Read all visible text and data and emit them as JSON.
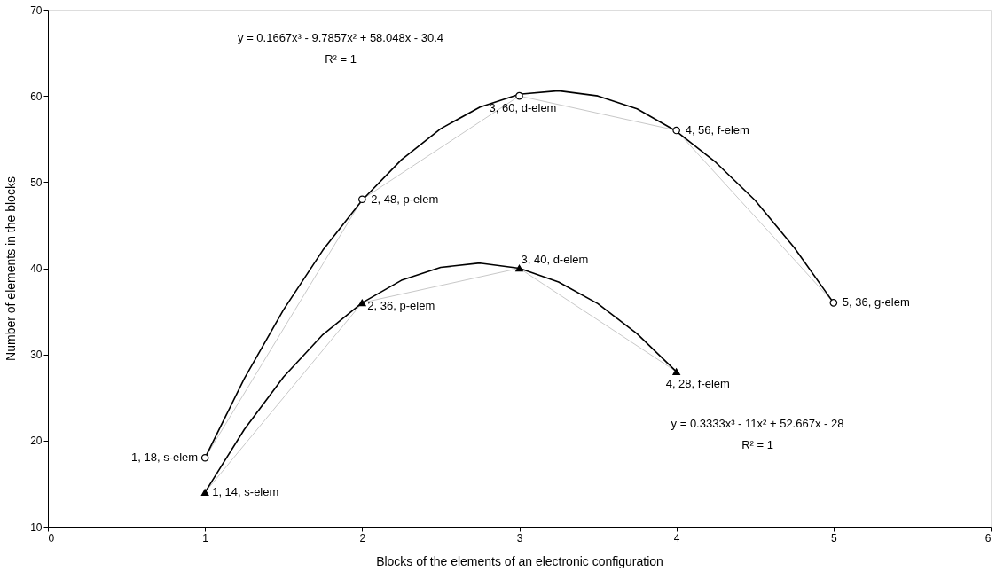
{
  "chart_data": {
    "type": "line",
    "xlabel": "Blocks of the elements of an electronic configuration",
    "ylabel": "Number of elements in the blocks",
    "xlim": [
      0,
      6
    ],
    "xticks": [
      0,
      1,
      2,
      3,
      4,
      5,
      {
        "value": 6,
        "label": "6"
      }
    ],
    "ylim": [
      10,
      70
    ],
    "yticks": [
      10,
      20,
      30,
      40,
      50,
      60,
      70
    ],
    "grid": false,
    "line_style": "solid",
    "series": [
      {
        "type": "line",
        "color": "#c8c8c8",
        "marker": "none",
        "x": [
          1,
          2,
          3,
          4,
          5
        ],
        "values": [
          18,
          48,
          60,
          56,
          36
        ]
      },
      {
        "type": "line",
        "color": "#c8c8c8",
        "marker": "none",
        "x": [
          1,
          2,
          3,
          4
        ],
        "values": [
          14,
          36,
          40,
          28
        ]
      },
      {
        "type": "line",
        "color": "#000000",
        "marker": "none",
        "x": [
          1,
          1.25,
          1.5,
          1.75,
          2,
          2.25,
          2.5,
          2.75,
          3,
          3.25,
          3.5,
          3.75,
          4,
          4.25,
          4.5,
          4.75,
          5
        ],
        "values": [
          18.0,
          27.2,
          35.2,
          42.1,
          47.9,
          52.6,
          56.2,
          58.7,
          60.2,
          60.6,
          60.0,
          58.5,
          55.9,
          52.3,
          47.9,
          42.4,
          36.0
        ]
      },
      {
        "type": "scatter",
        "color": "#000000",
        "marker": "circle",
        "x": [
          1,
          2,
          3,
          4,
          5
        ],
        "values": [
          18,
          48,
          60,
          56,
          36
        ]
      },
      {
        "type": "scatter",
        "color": "#000000",
        "marker": "triangle",
        "x": [
          1,
          2,
          3,
          4
        ],
        "values": [
          14,
          36,
          40,
          28
        ]
      },
      {
        "type": "line",
        "color": "#000000",
        "marker": "none",
        "x": [
          1,
          1.25,
          1.5,
          1.75,
          2,
          2.25,
          2.5,
          2.75,
          3,
          3.25,
          3.5,
          3.75,
          4
        ],
        "values": [
          14.0,
          21.3,
          27.4,
          32.3,
          36.0,
          38.6,
          40.1,
          40.6,
          40.0,
          38.4,
          35.9,
          32.4,
          28.0
        ]
      }
    ],
    "annotations": [
      {
        "text": "1, 18, s-elem",
        "x": 1,
        "y": 18
      },
      {
        "text": "2, 48, p-elem",
        "x": 2,
        "y": 48
      },
      {
        "text": "3, 60, d-elem",
        "x": 3,
        "y": 60
      },
      {
        "text": "4, 56, f-elem",
        "x": 4,
        "y": 56
      },
      {
        "text": "5, 36, g-elem",
        "x": 5,
        "y": 36
      },
      {
        "text": "1, 14, s-elem",
        "x": 1,
        "y": 14
      },
      {
        "text": "2, 36, p-elem",
        "x": 2,
        "y": 36
      },
      {
        "text": "3, 40, d-elem",
        "x": 3,
        "y": 40
      },
      {
        "text": "4, 28, f-elem",
        "x": 4,
        "y": 28
      },
      "y = 0.1667x³ - 9.7857x² + 58.048x - 30.4",
      "R² = 1",
      "y = 0.3333x³ - 11x² + 52.667x - 28",
      "R² = 1"
    ]
  }
}
